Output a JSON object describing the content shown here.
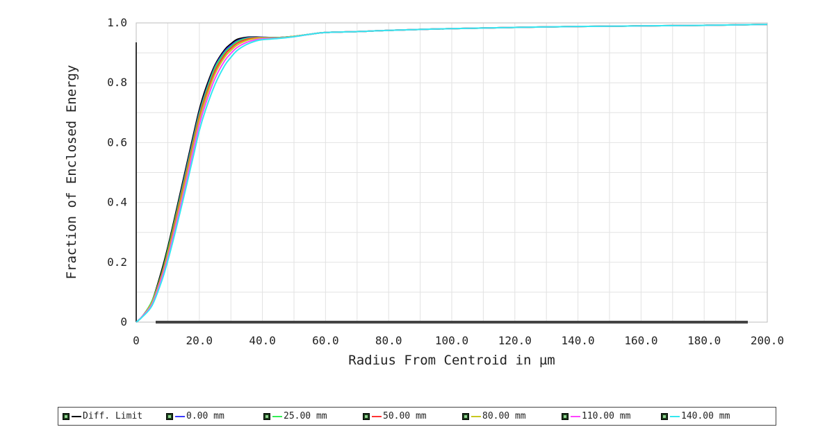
{
  "chart_data": {
    "type": "line",
    "title": "",
    "xlabel": "Radius From Centroid in µm",
    "ylabel": "Fraction of Enclosed Energy",
    "xlim": [
      0,
      200
    ],
    "ylim": [
      0,
      1.0
    ],
    "x_ticks": [
      0,
      20,
      40,
      60,
      80,
      100,
      120,
      140,
      160,
      180,
      200
    ],
    "x_tick_labels": [
      "0",
      "20.0",
      "40.0",
      "60.0",
      "80.0",
      "100.0",
      "120.0",
      "140.0",
      "160.0",
      "180.0",
      "200.0"
    ],
    "y_ticks": [
      0,
      0.2,
      0.4,
      0.6,
      0.8,
      1.0
    ],
    "y_tick_labels": [
      "0",
      "0.2",
      "0.4",
      "0.6",
      "0.8",
      "1.0"
    ],
    "grid": true,
    "legend_position": "bottom",
    "x": [
      0,
      2,
      5,
      8,
      10,
      12,
      15,
      18,
      20,
      22,
      25,
      28,
      30,
      32,
      35,
      38,
      40,
      45,
      50,
      55,
      60,
      70,
      80,
      100,
      120,
      140,
      160,
      180,
      200
    ],
    "series": [
      {
        "name": "Diff. Limit",
        "color": "#000000",
        "values": [
          0,
          0.02,
          0.07,
          0.17,
          0.25,
          0.34,
          0.48,
          0.62,
          0.71,
          0.78,
          0.86,
          0.91,
          0.93,
          0.945,
          0.952,
          0.953,
          0.952,
          0.951,
          0.955,
          0.962,
          0.968,
          0.971,
          0.975,
          0.981,
          0.985,
          0.988,
          0.99,
          0.992,
          0.995
        ]
      },
      {
        "name": "0.00 mm",
        "color": "#3a3aff",
        "values": [
          0,
          0.02,
          0.07,
          0.16,
          0.24,
          0.33,
          0.47,
          0.61,
          0.7,
          0.77,
          0.855,
          0.905,
          0.925,
          0.94,
          0.95,
          0.952,
          0.952,
          0.951,
          0.955,
          0.962,
          0.968,
          0.971,
          0.975,
          0.981,
          0.985,
          0.988,
          0.99,
          0.992,
          0.995
        ]
      },
      {
        "name": "25.00 mm",
        "color": "#33ee55",
        "values": [
          0,
          0.02,
          0.07,
          0.16,
          0.24,
          0.33,
          0.465,
          0.605,
          0.695,
          0.765,
          0.85,
          0.9,
          0.92,
          0.937,
          0.948,
          0.951,
          0.951,
          0.951,
          0.955,
          0.962,
          0.968,
          0.971,
          0.975,
          0.981,
          0.985,
          0.988,
          0.99,
          0.992,
          0.995
        ]
      },
      {
        "name": "50.00 mm",
        "color": "#ff3333",
        "values": [
          0,
          0.02,
          0.065,
          0.155,
          0.23,
          0.32,
          0.455,
          0.595,
          0.685,
          0.755,
          0.84,
          0.893,
          0.915,
          0.932,
          0.945,
          0.95,
          0.95,
          0.95,
          0.955,
          0.962,
          0.968,
          0.971,
          0.975,
          0.981,
          0.985,
          0.988,
          0.99,
          0.992,
          0.995
        ]
      },
      {
        "name": "80.00 mm",
        "color": "#c8c820",
        "values": [
          0,
          0.02,
          0.065,
          0.15,
          0.225,
          0.31,
          0.445,
          0.585,
          0.675,
          0.745,
          0.83,
          0.885,
          0.908,
          0.926,
          0.941,
          0.948,
          0.949,
          0.95,
          0.955,
          0.962,
          0.968,
          0.971,
          0.975,
          0.981,
          0.985,
          0.988,
          0.99,
          0.992,
          0.995
        ]
      },
      {
        "name": "110.00 mm",
        "color": "#ff44ff",
        "values": [
          0,
          0.02,
          0.06,
          0.145,
          0.215,
          0.3,
          0.43,
          0.57,
          0.66,
          0.73,
          0.815,
          0.873,
          0.898,
          0.918,
          0.935,
          0.944,
          0.947,
          0.949,
          0.954,
          0.962,
          0.968,
          0.971,
          0.975,
          0.981,
          0.985,
          0.988,
          0.99,
          0.992,
          0.995
        ]
      },
      {
        "name": "140.00 mm",
        "color": "#33e8f0",
        "values": [
          0,
          0.018,
          0.055,
          0.135,
          0.205,
          0.285,
          0.415,
          0.55,
          0.64,
          0.71,
          0.795,
          0.857,
          0.885,
          0.908,
          0.928,
          0.94,
          0.944,
          0.948,
          0.954,
          0.962,
          0.968,
          0.971,
          0.975,
          0.981,
          0.985,
          0.988,
          0.99,
          0.992,
          0.995
        ]
      }
    ]
  }
}
